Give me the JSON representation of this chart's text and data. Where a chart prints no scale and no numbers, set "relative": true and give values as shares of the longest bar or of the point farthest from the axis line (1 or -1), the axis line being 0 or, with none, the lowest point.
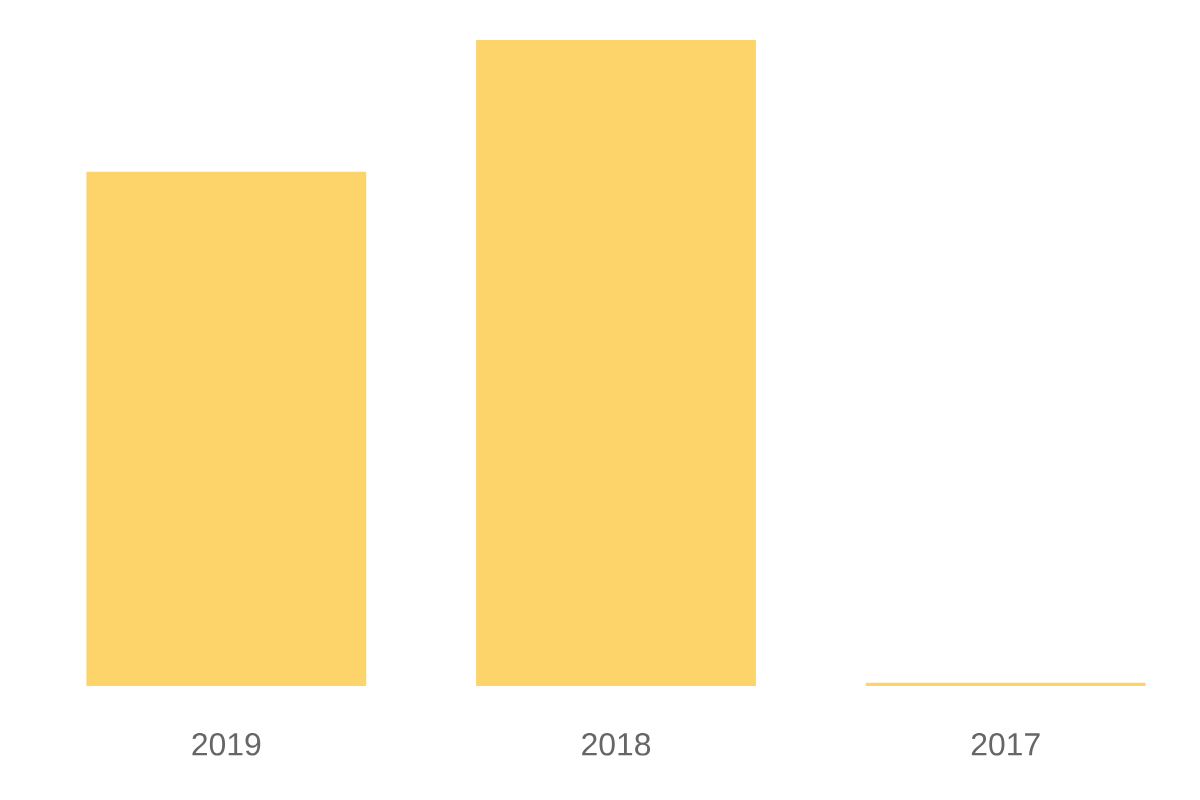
{
  "chart_data": {
    "type": "bar",
    "relative": true,
    "color": "#fdd46a",
    "categories": [
      "2019",
      "2018",
      "2017"
    ],
    "values": [
      0.796,
      1,
      0.005
    ]
  }
}
